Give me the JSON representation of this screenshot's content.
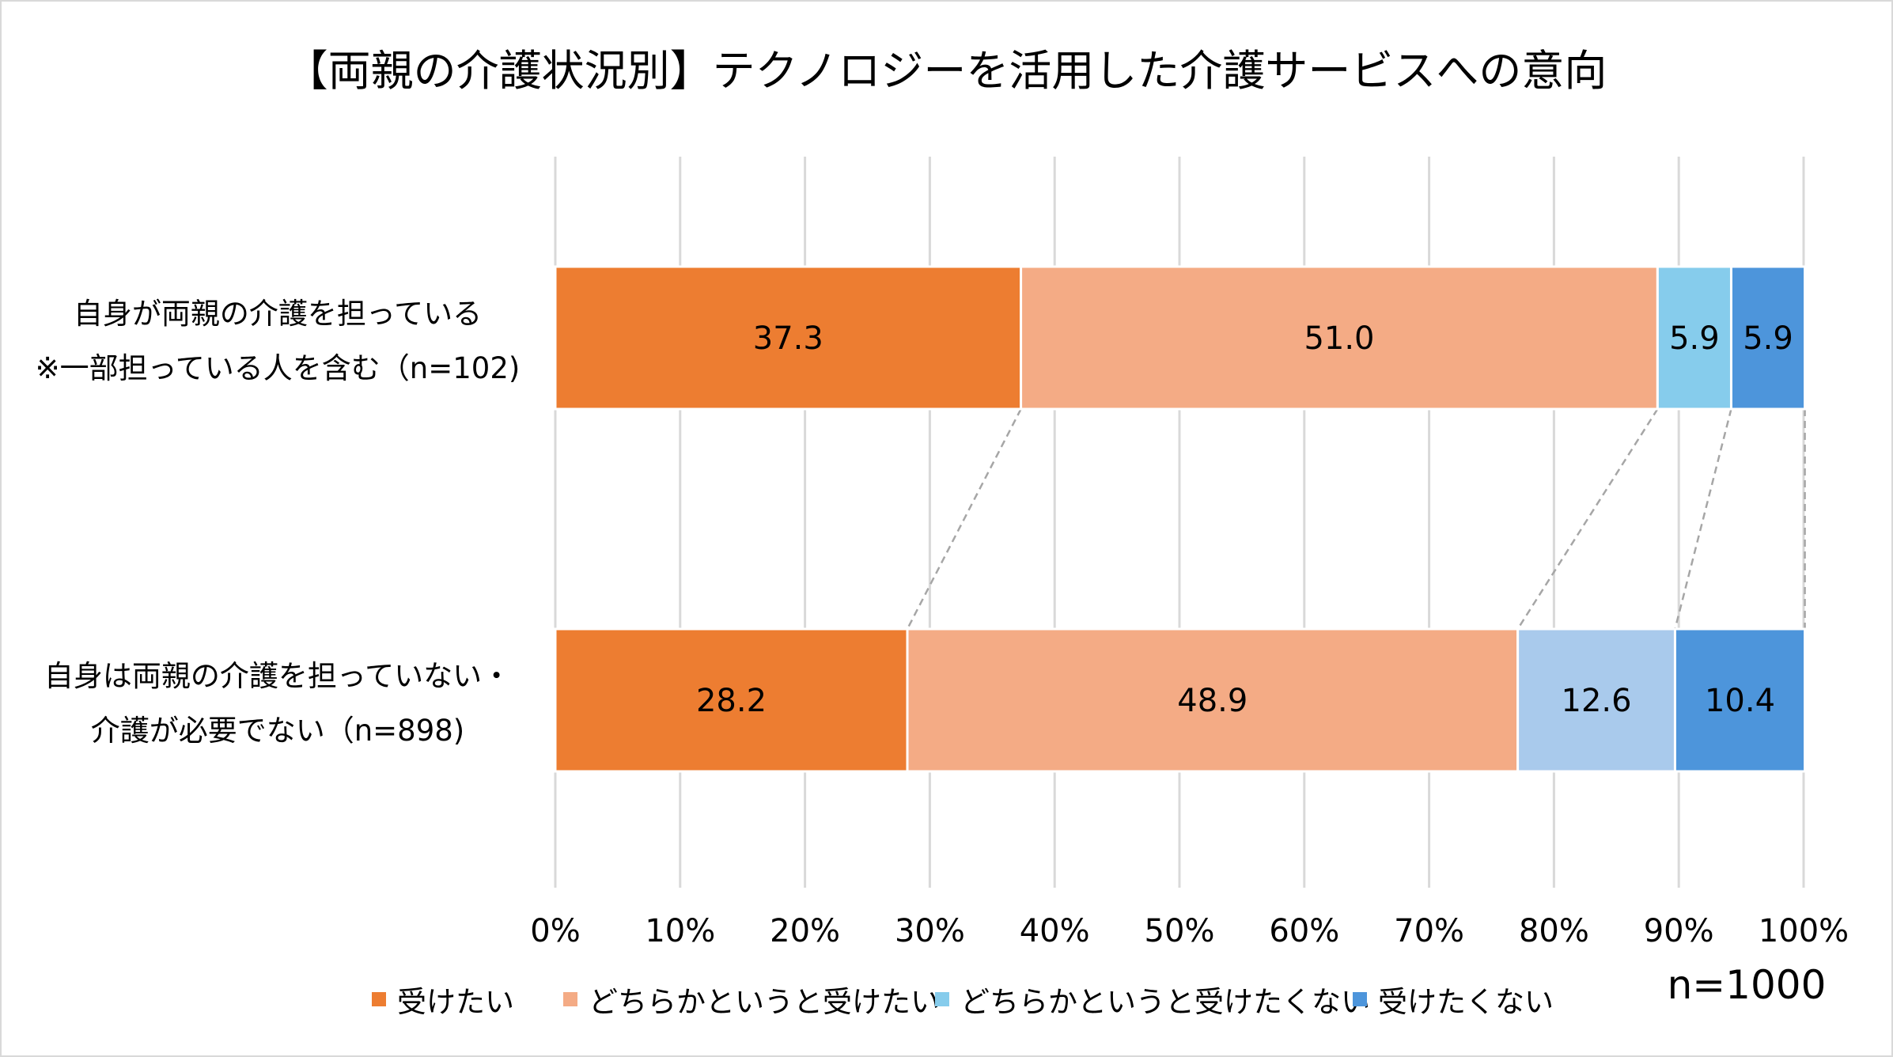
{
  "chart_data": {
    "type": "bar",
    "orientation": "horizontal",
    "stacked": "percent",
    "title": "【両親の介護状況別】テクノロジーを活用した介護サービスへの意向",
    "categories": [
      [
        "自身が両親の介護を担っている",
        "※一部担っている人を含む（n=102)"
      ],
      [
        "自身は両親の介護を担っていない・",
        "介護が必要でない（n=898)"
      ]
    ],
    "series": [
      {
        "name": "受けたい",
        "values": [
          37.3,
          28.2
        ],
        "color": "#ED7D31"
      },
      {
        "name": "どちらかというと受けたい",
        "values": [
          51.0,
          48.9
        ],
        "color": "#F4AB85"
      },
      {
        "name": "どちらかというと受けたくない",
        "values": [
          5.9,
          12.6
        ],
        "colors": [
          "#86CCEC",
          "#A9CAEC"
        ],
        "color": "#86CCEC"
      },
      {
        "name": "受けたくない",
        "values": [
          5.9,
          10.4
        ],
        "color": "#4D95DB"
      }
    ],
    "data_labels": [
      [
        "37.3",
        "51.0",
        "5.9",
        "5.9"
      ],
      [
        "28.2",
        "48.9",
        "12.6",
        "10.4"
      ]
    ],
    "xlim": [
      0,
      100
    ],
    "x_ticks": [
      "0%",
      "10%",
      "20%",
      "30%",
      "40%",
      "50%",
      "60%",
      "70%",
      "80%",
      "90%",
      "100%"
    ],
    "grid": true,
    "series_lines": true,
    "legend_position": "bottom",
    "annotation": "n=1000"
  }
}
